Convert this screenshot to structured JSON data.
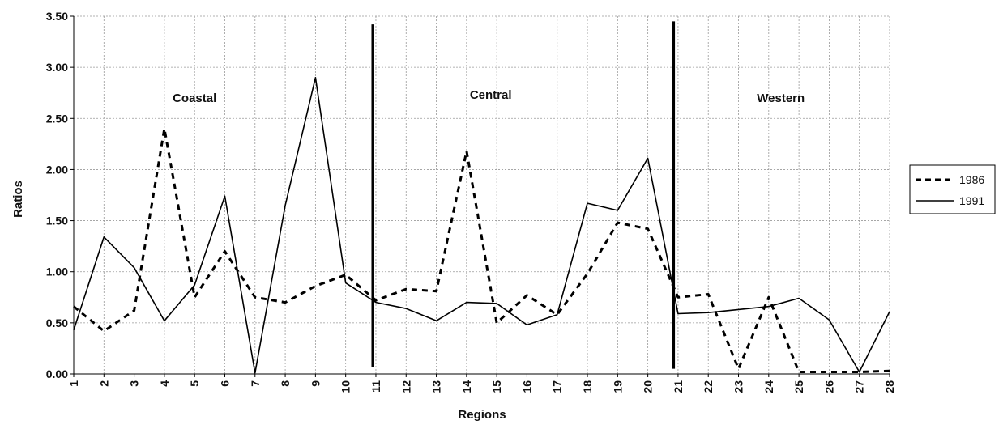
{
  "chart_data": {
    "type": "line",
    "title": "",
    "xlabel": "Regions",
    "ylabel": "Ratios",
    "x": [
      1,
      2,
      3,
      4,
      5,
      6,
      7,
      8,
      9,
      10,
      11,
      12,
      13,
      14,
      15,
      16,
      17,
      18,
      19,
      20,
      21,
      22,
      23,
      24,
      25,
      26,
      27,
      28
    ],
    "ylim": [
      0,
      3.5
    ],
    "yticks": [
      "0.00",
      "0.50",
      "1.00",
      "1.50",
      "2.00",
      "2.50",
      "3.00",
      "3.50"
    ],
    "grid": true,
    "legend_position": "right",
    "series": [
      {
        "name": "1986",
        "style": "dashed",
        "values": [
          0.66,
          0.42,
          0.62,
          2.4,
          0.75,
          1.2,
          0.75,
          0.7,
          0.86,
          0.97,
          0.72,
          0.83,
          0.81,
          2.18,
          0.5,
          0.77,
          0.58,
          0.98,
          1.48,
          1.42,
          0.75,
          0.78,
          0.05,
          0.75,
          0.02,
          0.02,
          0.02,
          0.03
        ]
      },
      {
        "name": "1991",
        "style": "solid",
        "values": [
          0.43,
          1.34,
          1.04,
          0.52,
          0.87,
          1.74,
          0.01,
          1.65,
          2.9,
          0.89,
          0.7,
          0.64,
          0.52,
          0.7,
          0.69,
          0.48,
          0.58,
          1.67,
          1.6,
          2.11,
          0.59,
          0.6,
          0.63,
          0.66,
          0.74,
          0.53,
          0.02,
          0.61
        ]
      }
    ],
    "dividers": [
      {
        "x": 10.9,
        "y_top": 3.42,
        "y_bottom": 0.07
      },
      {
        "x": 20.85,
        "y_top": 3.45,
        "y_bottom": 0.05
      }
    ],
    "annotations": [
      {
        "text": "Coastal",
        "x": 5,
        "y": 2.7
      },
      {
        "text": "Central",
        "x": 14.8,
        "y": 2.73
      },
      {
        "text": "Western",
        "x": 24.4,
        "y": 2.7
      }
    ]
  }
}
